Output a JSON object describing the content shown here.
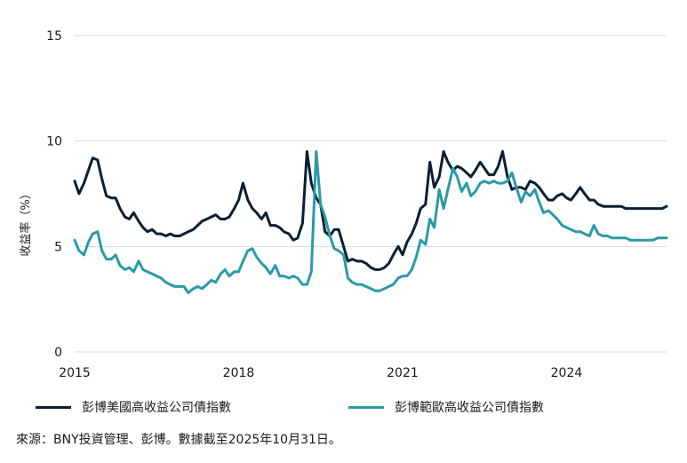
{
  "chart_data": {
    "type": "line",
    "ylabel": "收益率（%）",
    "ylim": [
      0,
      15
    ],
    "yticks": [
      "0",
      "5",
      "10",
      "15"
    ],
    "xlim": [
      2015.0,
      2025.83
    ],
    "xticks": [
      {
        "label": "2015",
        "value": 2015.0
      },
      {
        "label": "2018",
        "value": 2018.0
      },
      {
        "label": "2021",
        "value": 2021.0
      },
      {
        "label": "2024",
        "value": 2024.0
      }
    ],
    "grid": "horizontal",
    "legend_position": "bottom",
    "series": [
      {
        "name": "彭博美國高收益公司債指數",
        "color": "#0b1f33",
        "x": [
          2015.0,
          2015.08,
          2015.17,
          2015.25,
          2015.33,
          2015.42,
          2015.5,
          2015.58,
          2015.67,
          2015.75,
          2015.83,
          2015.92,
          2016.0,
          2016.08,
          2016.17,
          2016.25,
          2016.33,
          2016.42,
          2016.5,
          2016.58,
          2016.67,
          2016.75,
          2016.83,
          2016.92,
          2017.0,
          2017.08,
          2017.17,
          2017.25,
          2017.33,
          2017.42,
          2017.5,
          2017.58,
          2017.67,
          2017.75,
          2017.83,
          2017.92,
          2018.0,
          2018.08,
          2018.17,
          2018.25,
          2018.33,
          2018.42,
          2018.5,
          2018.58,
          2018.67,
          2018.75,
          2018.83,
          2018.92,
          2019.0,
          2019.08,
          2019.17,
          2019.25,
          2019.33,
          2019.42,
          2019.5,
          2019.58,
          2019.67,
          2019.75,
          2019.83,
          2019.92,
          2020.0,
          2020.08,
          2020.17,
          2020.25,
          2020.33,
          2020.42,
          2020.5,
          2020.58,
          2020.67,
          2020.75,
          2020.83,
          2020.92,
          2021.0,
          2021.08,
          2021.17,
          2021.25,
          2021.33,
          2021.42,
          2021.5,
          2021.58,
          2021.67,
          2021.75,
          2021.83,
          2021.92,
          2022.0,
          2022.08,
          2022.17,
          2022.25,
          2022.33,
          2022.42,
          2022.5,
          2022.58,
          2022.67,
          2022.75,
          2022.83,
          2022.92,
          2023.0,
          2023.08,
          2023.17,
          2023.25,
          2023.33,
          2023.42,
          2023.5,
          2023.58,
          2023.67,
          2023.75,
          2023.83,
          2023.92,
          2024.0,
          2024.08,
          2024.17,
          2024.25,
          2024.33,
          2024.42,
          2024.5,
          2024.58,
          2024.67,
          2024.75,
          2024.83,
          2024.92,
          2025.0,
          2025.08,
          2025.17,
          2025.25,
          2025.33,
          2025.42,
          2025.5,
          2025.58,
          2025.67,
          2025.75,
          2025.83
        ],
        "y": [
          8.1,
          7.5,
          8.0,
          8.6,
          9.2,
          9.1,
          8.2,
          7.4,
          7.3,
          7.3,
          6.8,
          6.4,
          6.3,
          6.6,
          6.2,
          5.9,
          5.7,
          5.8,
          5.6,
          5.6,
          5.5,
          5.6,
          5.5,
          5.5,
          5.6,
          5.7,
          5.8,
          6.0,
          6.2,
          6.3,
          6.4,
          6.5,
          6.3,
          6.3,
          6.4,
          6.8,
          7.2,
          8.0,
          7.2,
          6.8,
          6.6,
          6.3,
          6.6,
          6.0,
          6.0,
          5.9,
          5.7,
          5.6,
          5.3,
          5.4,
          6.1,
          9.5,
          8.0,
          7.3,
          7.0,
          5.7,
          5.5,
          5.8,
          5.8,
          5.0,
          4.3,
          4.4,
          4.3,
          4.3,
          4.2,
          4.0,
          3.9,
          3.9,
          4.0,
          4.2,
          4.6,
          5.0,
          4.6,
          5.2,
          5.6,
          6.1,
          6.8,
          7.0,
          9.0,
          7.8,
          8.3,
          9.5,
          9.0,
          8.6,
          8.8,
          8.7,
          8.5,
          8.3,
          8.6,
          9.0,
          8.7,
          8.4,
          8.4,
          8.8,
          9.5,
          8.3,
          7.7,
          7.8,
          7.8,
          7.7,
          8.1,
          8.0,
          7.8,
          7.5,
          7.2,
          7.2,
          7.4,
          7.5,
          7.3,
          7.2,
          7.5,
          7.8,
          7.5,
          7.2,
          7.2,
          7.0,
          6.9,
          6.9,
          6.9,
          6.9,
          6.9,
          6.8,
          6.8,
          6.8,
          6.8,
          6.8,
          6.8,
          6.8,
          6.8,
          6.8,
          6.9
        ],
        "y_note": ""
      },
      {
        "name": "彭博範歐高收益公司債指數",
        "color": "#2a9aa8",
        "x": [
          2015.0,
          2015.08,
          2015.17,
          2015.25,
          2015.33,
          2015.42,
          2015.5,
          2015.58,
          2015.67,
          2015.75,
          2015.83,
          2015.92,
          2016.0,
          2016.08,
          2016.17,
          2016.25,
          2016.33,
          2016.42,
          2016.5,
          2016.58,
          2016.67,
          2016.75,
          2016.83,
          2016.92,
          2017.0,
          2017.08,
          2017.17,
          2017.25,
          2017.33,
          2017.42,
          2017.5,
          2017.58,
          2017.67,
          2017.75,
          2017.83,
          2017.92,
          2018.0,
          2018.08,
          2018.17,
          2018.25,
          2018.33,
          2018.42,
          2018.5,
          2018.58,
          2018.67,
          2018.75,
          2018.83,
          2018.92,
          2019.0,
          2019.08,
          2019.17,
          2019.25,
          2019.33,
          2019.42,
          2019.5,
          2019.58,
          2019.67,
          2019.75,
          2019.83,
          2019.92,
          2020.0,
          2020.08,
          2020.17,
          2020.25,
          2020.33,
          2020.42,
          2020.5,
          2020.58,
          2020.67,
          2020.75,
          2020.83,
          2020.92,
          2021.0,
          2021.08,
          2021.17,
          2021.25,
          2021.33,
          2021.42,
          2021.5,
          2021.58,
          2021.67,
          2021.75,
          2021.83,
          2021.92,
          2022.0,
          2022.08,
          2022.17,
          2022.25,
          2022.33,
          2022.42,
          2022.5,
          2022.58,
          2022.67,
          2022.75,
          2022.83,
          2022.92,
          2023.0,
          2023.08,
          2023.17,
          2023.25,
          2023.33,
          2023.42,
          2023.5,
          2023.58,
          2023.67,
          2023.75,
          2023.83,
          2023.92,
          2024.0,
          2024.08,
          2024.17,
          2024.25,
          2024.33,
          2024.42,
          2024.5,
          2024.58,
          2024.67,
          2024.75,
          2024.83,
          2024.92,
          2025.0,
          2025.08,
          2025.17,
          2025.25,
          2025.33,
          2025.42,
          2025.5,
          2025.58,
          2025.67,
          2025.75,
          2025.83
        ],
        "y": [
          5.3,
          4.8,
          4.6,
          5.2,
          5.6,
          5.7,
          4.8,
          4.4,
          4.4,
          4.6,
          4.1,
          3.9,
          4.0,
          3.8,
          4.3,
          3.9,
          3.8,
          3.7,
          3.6,
          3.5,
          3.3,
          3.2,
          3.1,
          3.1,
          3.1,
          2.8,
          3.0,
          3.1,
          3.0,
          3.2,
          3.4,
          3.3,
          3.7,
          3.9,
          3.6,
          3.8,
          3.8,
          4.3,
          4.8,
          4.9,
          4.5,
          4.2,
          4.0,
          3.7,
          4.1,
          3.6,
          3.6,
          3.5,
          3.6,
          3.5,
          3.2,
          3.2,
          3.8,
          9.5,
          7.0,
          6.4,
          5.5,
          4.9,
          4.8,
          4.6,
          3.5,
          3.3,
          3.2,
          3.2,
          3.1,
          3.0,
          2.9,
          2.9,
          3.0,
          3.1,
          3.2,
          3.5,
          3.6,
          3.6,
          3.9,
          4.5,
          5.3,
          5.1,
          6.3,
          5.9,
          7.7,
          6.8,
          7.7,
          8.7,
          8.3,
          7.6,
          8.0,
          7.4,
          7.6,
          8.0,
          8.1,
          8.0,
          8.1,
          8.0,
          8.0,
          8.1,
          8.5,
          7.8,
          7.1,
          7.6,
          7.4,
          7.7,
          7.1,
          6.6,
          6.7,
          6.5,
          6.3,
          6.0,
          5.9,
          5.8,
          5.7,
          5.7,
          5.6,
          5.5,
          6.0,
          5.6,
          5.5,
          5.5,
          5.4,
          5.4,
          5.4,
          5.4,
          5.3,
          5.3,
          5.3,
          5.3,
          5.3,
          5.3,
          5.4,
          5.4,
          5.4
        ],
        "y_note": ""
      }
    ]
  },
  "legend": {
    "items": [
      {
        "label": "彭博美國高收益公司債指數",
        "color": "#0b1f33"
      },
      {
        "label": "彭博範歐高收益公司債指數",
        "color": "#2a9aa8"
      }
    ]
  },
  "source": "來源：BNY投資管理、彭博。數據截至2025年10月31日。"
}
